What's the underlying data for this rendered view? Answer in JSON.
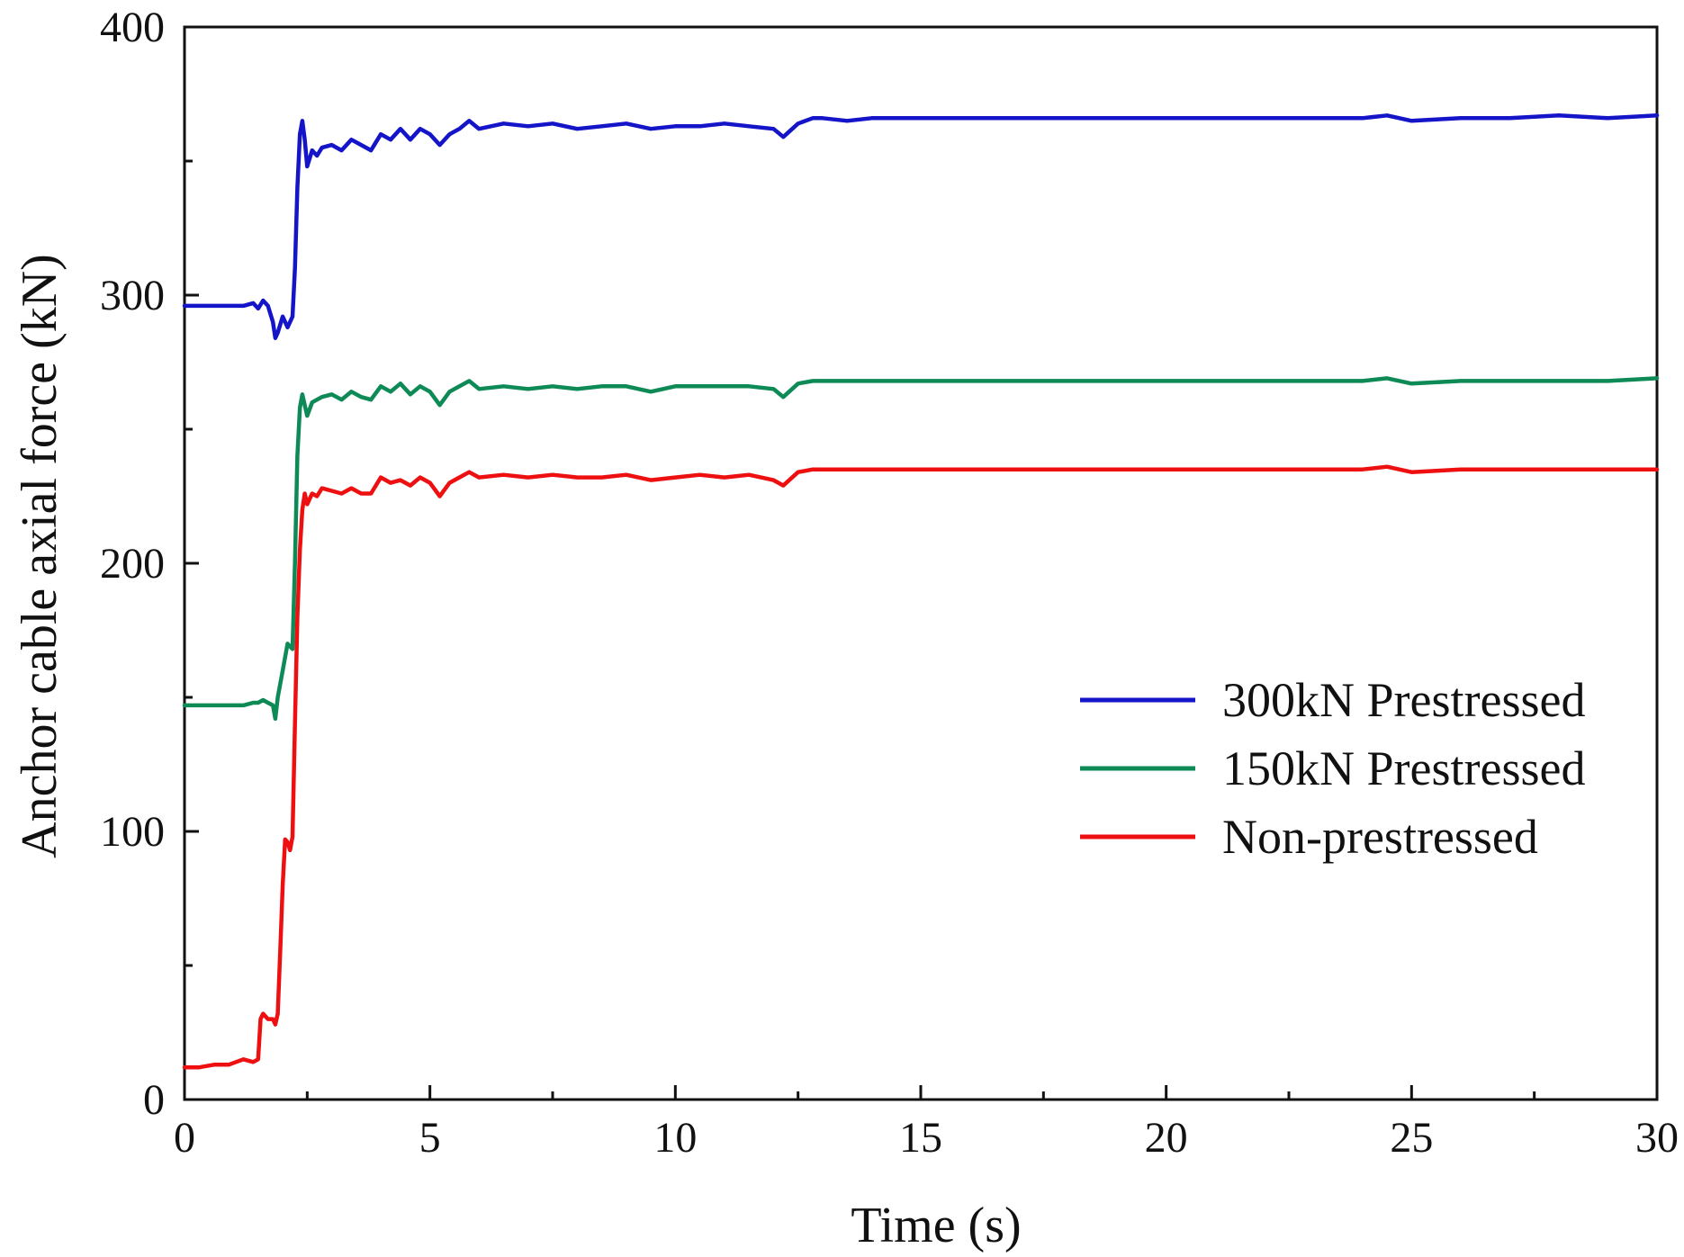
{
  "chart_data": {
    "type": "line",
    "title": "",
    "xlabel": "Time (s)",
    "ylabel": "Anchor cable axial force (kN)",
    "xlim": [
      0,
      30
    ],
    "ylim": [
      0,
      400
    ],
    "x_ticks": [
      0,
      5,
      10,
      15,
      20,
      25,
      30
    ],
    "x_tick_labels": [
      "0",
      "5",
      "10",
      "15",
      "20",
      "25",
      "30"
    ],
    "y_ticks": [
      0,
      100,
      200,
      300,
      400
    ],
    "y_tick_labels": [
      "0",
      "100",
      "200",
      "300",
      "400"
    ],
    "x_minor_step": 2.5,
    "y_minor_step": 50,
    "grid": false,
    "legend_position": "center-right",
    "series": [
      {
        "name": "300kN Prestressed",
        "color": "#1414c8",
        "x": [
          0,
          1.0,
          1.2,
          1.4,
          1.5,
          1.6,
          1.7,
          1.8,
          1.85,
          1.9,
          2.0,
          2.1,
          2.2,
          2.25,
          2.3,
          2.35,
          2.4,
          2.45,
          2.5,
          2.6,
          2.7,
          2.8,
          3.0,
          3.2,
          3.4,
          3.6,
          3.8,
          4.0,
          4.2,
          4.4,
          4.6,
          4.8,
          5.0,
          5.2,
          5.4,
          5.6,
          5.8,
          6.0,
          6.5,
          7.0,
          7.5,
          8.0,
          8.5,
          9.0,
          9.5,
          10.0,
          10.5,
          11.0,
          11.5,
          12.0,
          12.2,
          12.5,
          12.8,
          13.0,
          13.5,
          14.0,
          15.0,
          16.0,
          17.0,
          18.0,
          19.0,
          20.0,
          21.0,
          22.0,
          23.0,
          24.0,
          24.5,
          25.0,
          26.0,
          27.0,
          28.0,
          29.0,
          30.0
        ],
        "values": [
          296,
          296,
          296,
          297,
          295,
          298,
          296,
          290,
          284,
          286,
          292,
          288,
          292,
          310,
          340,
          360,
          365,
          358,
          348,
          354,
          352,
          355,
          356,
          354,
          358,
          356,
          354,
          360,
          358,
          362,
          358,
          362,
          360,
          356,
          360,
          362,
          365,
          362,
          364,
          363,
          364,
          362,
          363,
          364,
          362,
          363,
          363,
          364,
          363,
          362,
          359,
          364,
          366,
          366,
          365,
          366,
          366,
          366,
          366,
          366,
          366,
          366,
          366,
          366,
          366,
          366,
          367,
          365,
          366,
          366,
          367,
          366,
          367
        ]
      },
      {
        "name": "150kN Prestressed",
        "color": "#0e8a57",
        "x": [
          0,
          1.0,
          1.2,
          1.4,
          1.5,
          1.6,
          1.7,
          1.8,
          1.85,
          1.9,
          2.0,
          2.1,
          2.2,
          2.25,
          2.3,
          2.35,
          2.4,
          2.45,
          2.5,
          2.6,
          2.7,
          2.8,
          3.0,
          3.2,
          3.4,
          3.6,
          3.8,
          4.0,
          4.2,
          4.4,
          4.6,
          4.8,
          5.0,
          5.2,
          5.4,
          5.6,
          5.8,
          6.0,
          6.5,
          7.0,
          7.5,
          8.0,
          8.5,
          9.0,
          9.5,
          10.0,
          10.5,
          11.0,
          11.5,
          12.0,
          12.2,
          12.5,
          12.8,
          13.0,
          13.5,
          14.0,
          15.0,
          16.0,
          17.0,
          18.0,
          19.0,
          20.0,
          21.0,
          22.0,
          23.0,
          24.0,
          24.5,
          25.0,
          26.0,
          27.0,
          28.0,
          29.0,
          30.0
        ],
        "values": [
          147,
          147,
          147,
          148,
          148,
          149,
          148,
          147,
          142,
          150,
          160,
          170,
          168,
          200,
          240,
          258,
          263,
          259,
          255,
          260,
          261,
          262,
          263,
          261,
          264,
          262,
          261,
          266,
          264,
          267,
          263,
          266,
          264,
          259,
          264,
          266,
          268,
          265,
          266,
          265,
          266,
          265,
          266,
          266,
          264,
          266,
          266,
          266,
          266,
          265,
          262,
          267,
          268,
          268,
          268,
          268,
          268,
          268,
          268,
          268,
          268,
          268,
          268,
          268,
          268,
          268,
          269,
          267,
          268,
          268,
          268,
          268,
          269
        ]
      },
      {
        "name": "Non-prestressed",
        "color": "#ee1010",
        "x": [
          0,
          0.3,
          0.6,
          0.9,
          1.2,
          1.4,
          1.5,
          1.55,
          1.6,
          1.7,
          1.8,
          1.85,
          1.9,
          1.95,
          2.0,
          2.05,
          2.1,
          2.15,
          2.2,
          2.25,
          2.3,
          2.35,
          2.4,
          2.45,
          2.5,
          2.6,
          2.7,
          2.8,
          3.0,
          3.2,
          3.4,
          3.6,
          3.8,
          4.0,
          4.2,
          4.4,
          4.6,
          4.8,
          5.0,
          5.2,
          5.4,
          5.6,
          5.8,
          6.0,
          6.5,
          7.0,
          7.5,
          8.0,
          8.5,
          9.0,
          9.5,
          10.0,
          10.5,
          11.0,
          11.5,
          12.0,
          12.2,
          12.5,
          12.8,
          13.0,
          13.5,
          14.0,
          15.0,
          16.0,
          17.0,
          18.0,
          19.0,
          20.0,
          21.0,
          22.0,
          23.0,
          24.0,
          24.5,
          25.0,
          26.0,
          27.0,
          28.0,
          29.0,
          30.0
        ],
        "values": [
          12,
          12,
          13,
          13,
          15,
          14,
          15,
          30,
          32,
          30,
          30,
          28,
          32,
          55,
          80,
          97,
          96,
          93,
          98,
          140,
          180,
          205,
          220,
          226,
          222,
          226,
          225,
          228,
          227,
          226,
          228,
          226,
          226,
          232,
          230,
          231,
          229,
          232,
          230,
          225,
          230,
          232,
          234,
          232,
          233,
          232,
          233,
          232,
          232,
          233,
          231,
          232,
          233,
          232,
          233,
          231,
          229,
          234,
          235,
          235,
          235,
          235,
          235,
          235,
          235,
          235,
          235,
          235,
          235,
          235,
          235,
          235,
          236,
          234,
          235,
          235,
          235,
          235,
          235
        ]
      }
    ]
  }
}
